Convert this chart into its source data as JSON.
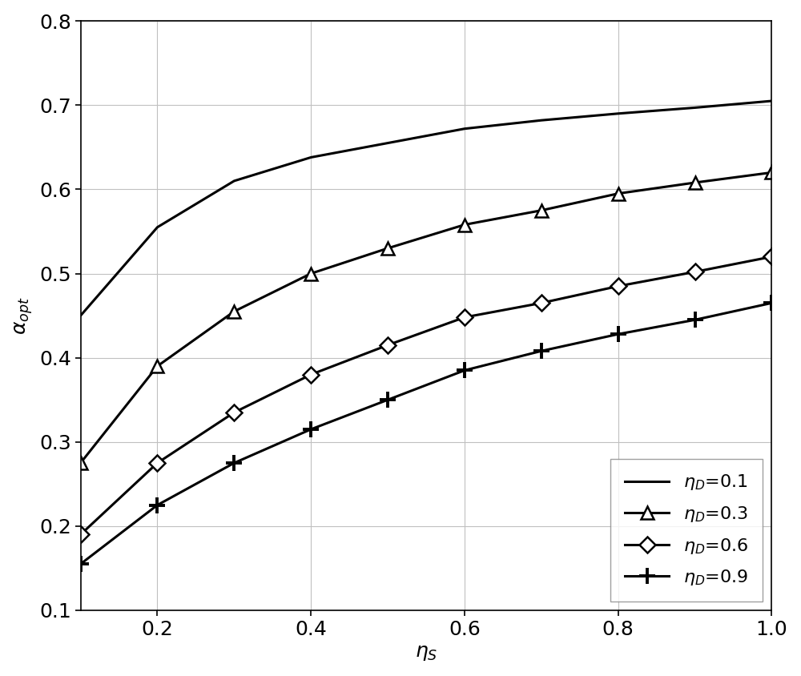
{
  "title": "",
  "xlim": [
    0.1,
    1.0
  ],
  "ylim": [
    0.1,
    0.8
  ],
  "xticks": [
    0.2,
    0.4,
    0.6,
    0.8,
    1.0
  ],
  "yticks": [
    0.1,
    0.2,
    0.3,
    0.4,
    0.5,
    0.6,
    0.7,
    0.8
  ],
  "series": [
    {
      "legend_eta": "0.1",
      "x": [
        0.1,
        0.2,
        0.3,
        0.4,
        0.5,
        0.6,
        0.7,
        0.8,
        0.9,
        1.0
      ],
      "y": [
        0.45,
        0.555,
        0.61,
        0.638,
        0.655,
        0.672,
        0.682,
        0.69,
        0.697,
        0.705
      ],
      "marker": "none",
      "linewidth": 2.2
    },
    {
      "legend_eta": "0.3",
      "x": [
        0.1,
        0.2,
        0.3,
        0.4,
        0.5,
        0.6,
        0.7,
        0.8,
        0.9,
        1.0
      ],
      "y": [
        0.275,
        0.39,
        0.455,
        0.5,
        0.53,
        0.558,
        0.575,
        0.595,
        0.608,
        0.62
      ],
      "marker": "^",
      "linewidth": 2.2
    },
    {
      "legend_eta": "0.6",
      "x": [
        0.1,
        0.2,
        0.3,
        0.4,
        0.5,
        0.6,
        0.7,
        0.8,
        0.9,
        1.0
      ],
      "y": [
        0.19,
        0.275,
        0.335,
        0.38,
        0.415,
        0.448,
        0.465,
        0.485,
        0.502,
        0.52
      ],
      "marker": "D",
      "linewidth": 2.2
    },
    {
      "legend_eta": "0.9",
      "x": [
        0.1,
        0.2,
        0.3,
        0.4,
        0.5,
        0.6,
        0.7,
        0.8,
        0.9,
        1.0
      ],
      "y": [
        0.155,
        0.225,
        0.275,
        0.315,
        0.35,
        0.385,
        0.408,
        0.428,
        0.445,
        0.465
      ],
      "marker": "+",
      "linewidth": 2.2
    }
  ],
  "grid_color": "#c0c0c0",
  "grid_linewidth": 0.8,
  "background_color": "#ffffff",
  "label_fontsize": 18,
  "tick_fontsize": 18,
  "legend_fontsize": 16,
  "marker_size_triangle": 11,
  "marker_size_diamond": 10,
  "marker_size_plus": 14,
  "marker_edge_width": 1.8,
  "plus_edge_width": 2.8
}
